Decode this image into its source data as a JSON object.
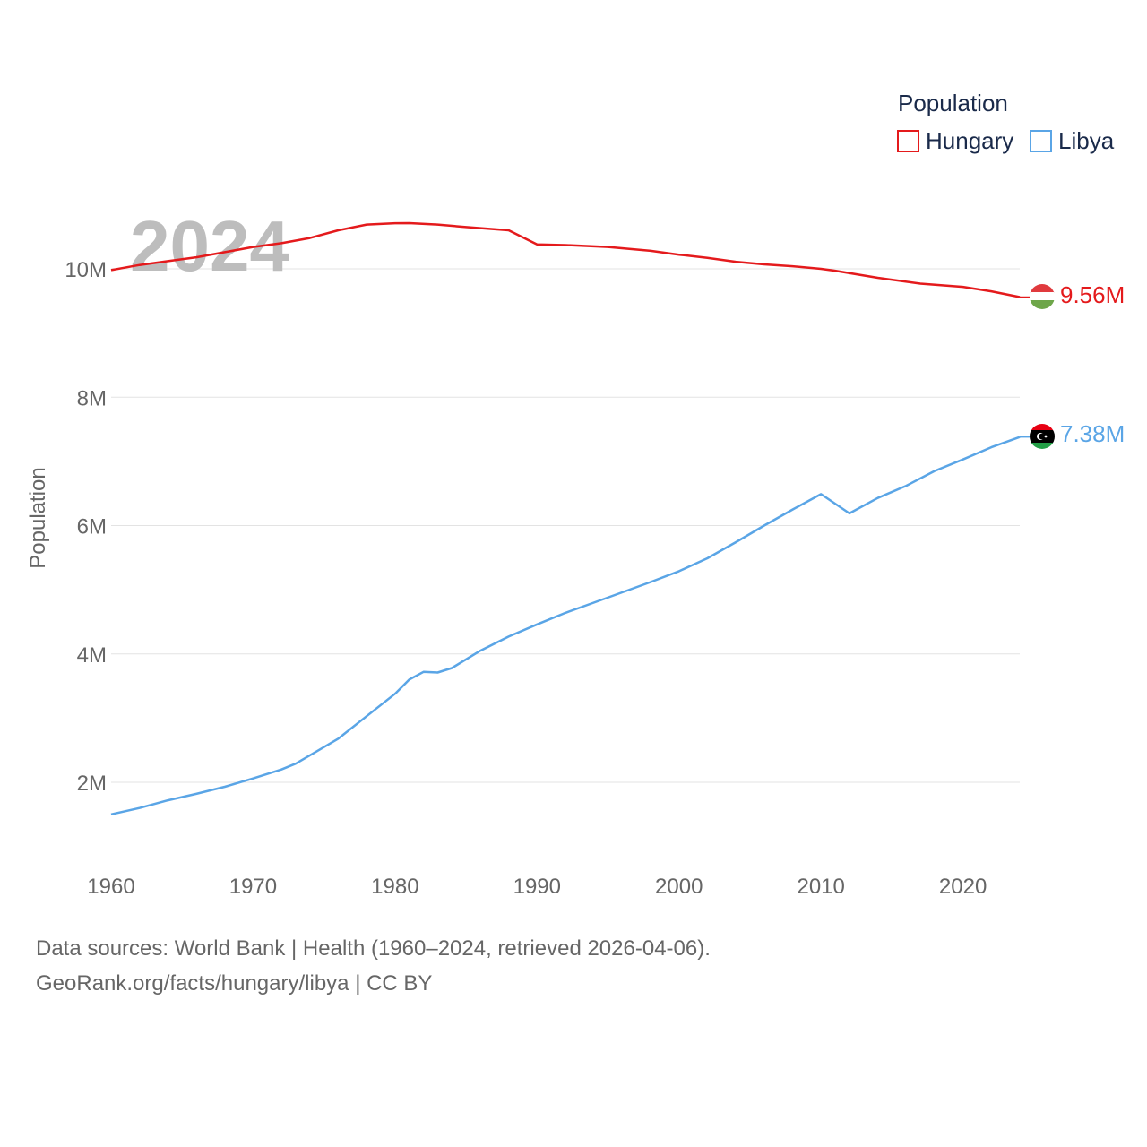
{
  "chart_data": {
    "type": "line",
    "title": "",
    "xlabel": "",
    "ylabel": "Population",
    "xlim": [
      1960,
      2024
    ],
    "ylim": [
      1000000,
      11300000
    ],
    "y_ticks": [
      {
        "value": 2000000,
        "label": "2M"
      },
      {
        "value": 4000000,
        "label": "4M"
      },
      {
        "value": 6000000,
        "label": "6M"
      },
      {
        "value": 8000000,
        "label": "8M"
      },
      {
        "value": 10000000,
        "label": "10M"
      }
    ],
    "x_ticks": [
      {
        "value": 1960,
        "label": "1960"
      },
      {
        "value": 1970,
        "label": "1970"
      },
      {
        "value": 1980,
        "label": "1980"
      },
      {
        "value": 1990,
        "label": "1990"
      },
      {
        "value": 2000,
        "label": "2000"
      },
      {
        "value": 2010,
        "label": "2010"
      },
      {
        "value": 2020,
        "label": "2020"
      }
    ],
    "year_label": "2024",
    "legend": {
      "title": "Population",
      "position": "top-right"
    },
    "grid": true,
    "series": [
      {
        "name": "Hungary",
        "color": "#e41a1c",
        "end_label": "9.56M",
        "flag": "hungary",
        "points": [
          [
            1960,
            9980000
          ],
          [
            1962,
            10060000
          ],
          [
            1964,
            10120000
          ],
          [
            1966,
            10180000
          ],
          [
            1968,
            10260000
          ],
          [
            1970,
            10340000
          ],
          [
            1972,
            10400000
          ],
          [
            1974,
            10480000
          ],
          [
            1976,
            10600000
          ],
          [
            1978,
            10690000
          ],
          [
            1980,
            10710000
          ],
          [
            1981,
            10712000
          ],
          [
            1983,
            10690000
          ],
          [
            1985,
            10650000
          ],
          [
            1988,
            10600000
          ],
          [
            1990,
            10380000
          ],
          [
            1992,
            10370000
          ],
          [
            1995,
            10340000
          ],
          [
            1998,
            10280000
          ],
          [
            2000,
            10220000
          ],
          [
            2002,
            10170000
          ],
          [
            2004,
            10110000
          ],
          [
            2006,
            10070000
          ],
          [
            2008,
            10040000
          ],
          [
            2010,
            10000000
          ],
          [
            2011,
            9970000
          ],
          [
            2014,
            9860000
          ],
          [
            2017,
            9770000
          ],
          [
            2020,
            9720000
          ],
          [
            2022,
            9650000
          ],
          [
            2024,
            9560000
          ]
        ]
      },
      {
        "name": "Libya",
        "color": "#5aa5e6",
        "end_label": "7.38M",
        "flag": "libya",
        "points": [
          [
            1960,
            1500000
          ],
          [
            1962,
            1600000
          ],
          [
            1964,
            1720000
          ],
          [
            1966,
            1820000
          ],
          [
            1968,
            1930000
          ],
          [
            1970,
            2060000
          ],
          [
            1972,
            2200000
          ],
          [
            1973,
            2290000
          ],
          [
            1974,
            2420000
          ],
          [
            1976,
            2680000
          ],
          [
            1978,
            3030000
          ],
          [
            1980,
            3380000
          ],
          [
            1981,
            3600000
          ],
          [
            1982,
            3720000
          ],
          [
            1983,
            3710000
          ],
          [
            1984,
            3780000
          ],
          [
            1986,
            4050000
          ],
          [
            1988,
            4270000
          ],
          [
            1990,
            4460000
          ],
          [
            1992,
            4640000
          ],
          [
            1994,
            4800000
          ],
          [
            1996,
            4960000
          ],
          [
            1998,
            5120000
          ],
          [
            2000,
            5290000
          ],
          [
            2002,
            5490000
          ],
          [
            2004,
            5740000
          ],
          [
            2006,
            6000000
          ],
          [
            2008,
            6250000
          ],
          [
            2010,
            6490000
          ],
          [
            2012,
            6190000
          ],
          [
            2014,
            6430000
          ],
          [
            2016,
            6620000
          ],
          [
            2018,
            6850000
          ],
          [
            2020,
            7030000
          ],
          [
            2022,
            7220000
          ],
          [
            2024,
            7380000
          ]
        ]
      }
    ]
  },
  "footer": {
    "line1": "Data sources: World Bank | Health (1960–2024, retrieved 2026-04-06).",
    "line2": "GeoRank.org/facts/hungary/libya | CC BY"
  }
}
